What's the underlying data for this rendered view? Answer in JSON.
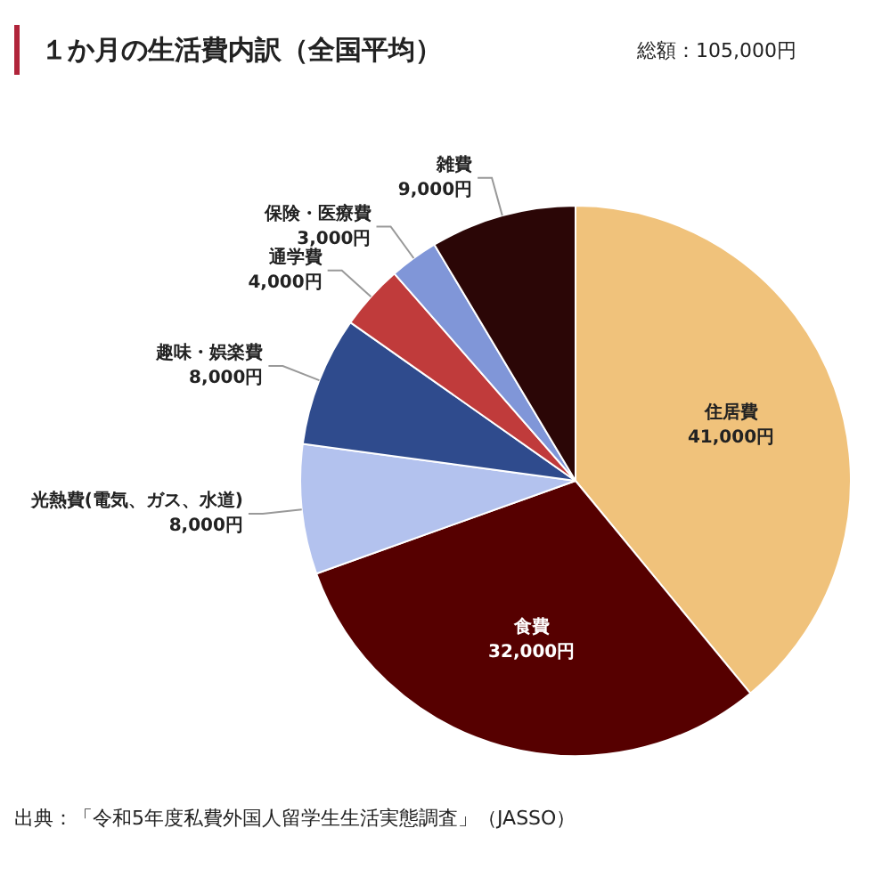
{
  "chart_data": {
    "type": "pie",
    "title": "１か月の生活費内訳（全国平均）",
    "subtitle": "総額：105,000円",
    "categories": [
      "住居費",
      "食費",
      "光熱費(電気、ガス、水道)",
      "趣味・娯楽費",
      "通学費",
      "保険・医療費",
      "雑費"
    ],
    "values": [
      41000,
      32000,
      8000,
      8000,
      4000,
      3000,
      9000
    ],
    "colors": [
      "#f0c27b",
      "#560000",
      "#b3c2ee",
      "#2f4b8d",
      "#c03b3b",
      "#8096d8",
      "#2b0606"
    ],
    "value_labels": [
      "41,000円",
      "32,000円",
      "8,000円",
      "8,000円",
      "4,000円",
      "3,000円",
      "9,000円"
    ],
    "annotations": [
      "出典：「令和5年度私費外国人留学生生活実態調査」（JASSO）"
    ]
  }
}
